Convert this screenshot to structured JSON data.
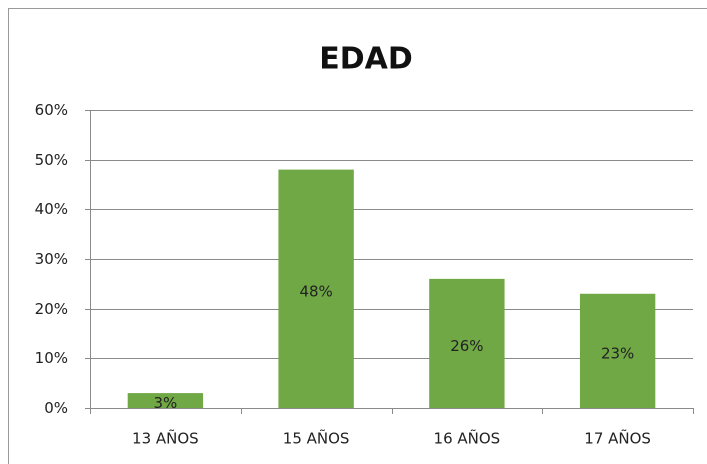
{
  "chart_data": {
    "type": "bar",
    "title": "EDAD",
    "categories": [
      "13 AÑOS",
      "15 AÑOS",
      "16 AÑOS",
      "17 AÑOS"
    ],
    "values": [
      3,
      48,
      26,
      23
    ],
    "value_labels": [
      "3%",
      "48%",
      "26%",
      "23%"
    ],
    "color": "#70a845",
    "ylim": [
      0,
      60
    ],
    "yticks": [
      {
        "value": 0,
        "label": "0%"
      },
      {
        "value": 10,
        "label": "10%"
      },
      {
        "value": 20,
        "label": "20%"
      },
      {
        "value": 30,
        "label": "30%"
      },
      {
        "value": 40,
        "label": "40%"
      },
      {
        "value": 50,
        "label": "50%"
      },
      {
        "value": 60,
        "label": "60%"
      }
    ],
    "grid": true
  }
}
